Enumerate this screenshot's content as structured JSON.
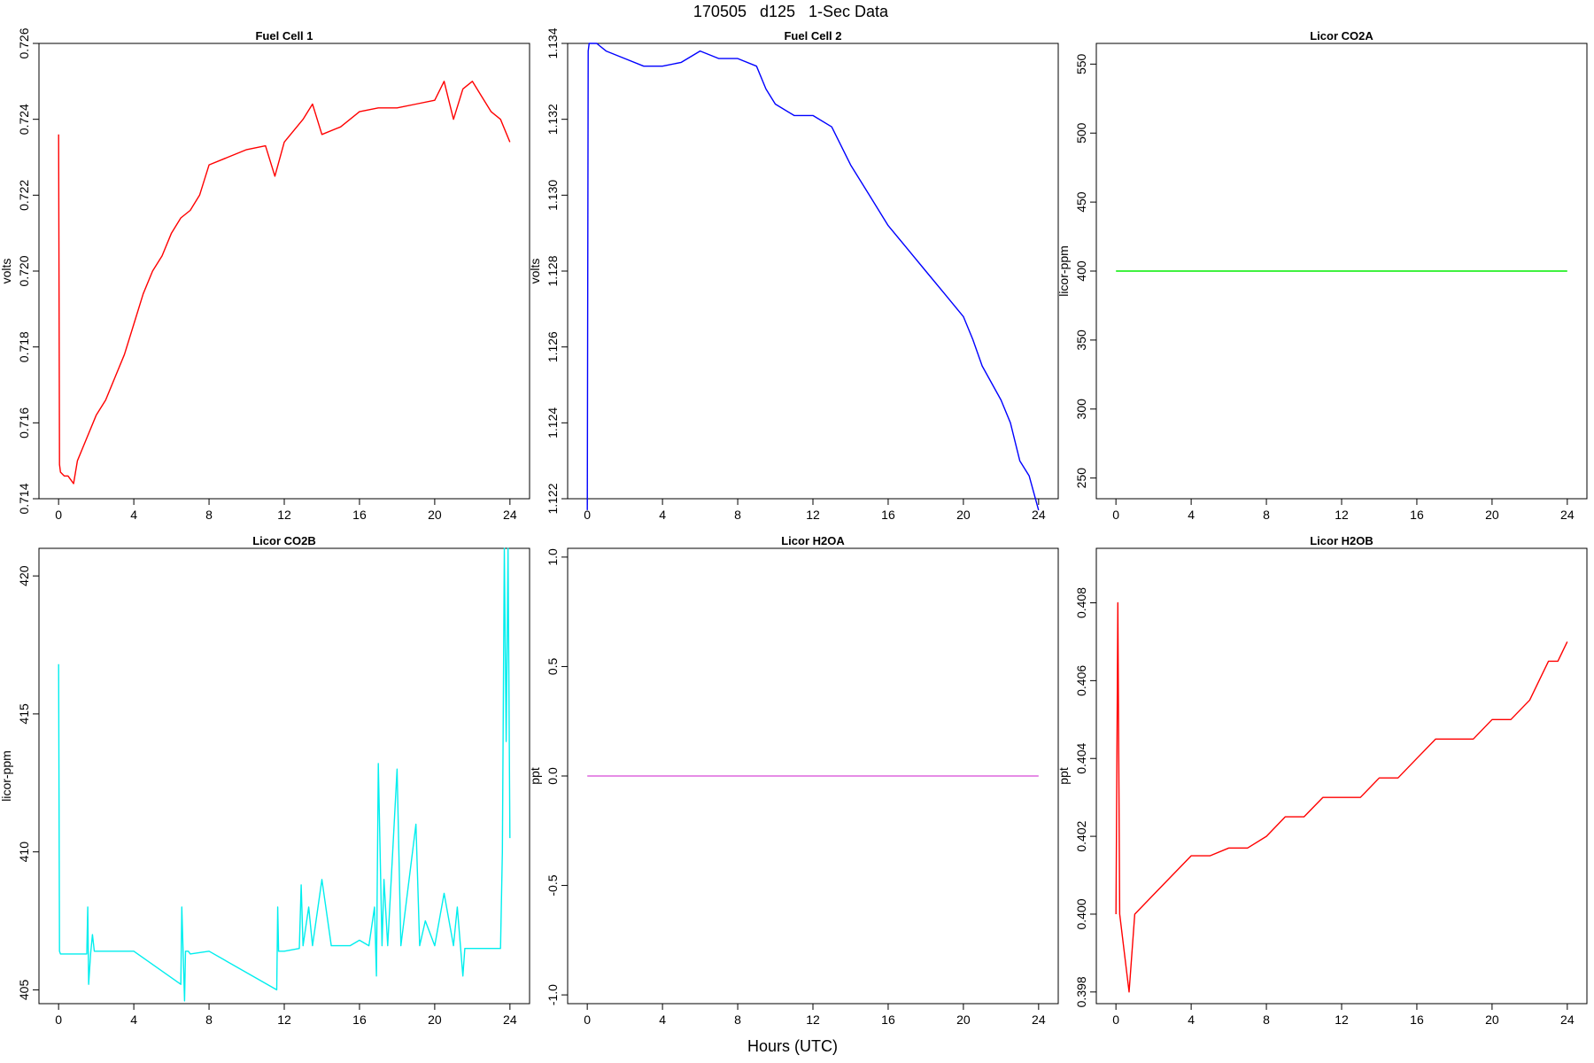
{
  "figure": {
    "title": "170505   d125   1-Sec Data",
    "xlabel": "Hours (UTC)"
  },
  "chart_data": [
    {
      "type": "line",
      "title": "Fuel Cell 1",
      "ylabel": "volts",
      "xlim": [
        0,
        24
      ],
      "ylim": [
        0.714,
        0.726
      ],
      "xticks": [
        0,
        4,
        8,
        12,
        16,
        20,
        24
      ],
      "yticks": [
        0.714,
        0.716,
        0.718,
        0.72,
        0.722,
        0.724,
        0.726
      ],
      "color": "#ff0000",
      "series": [
        {
          "x": [
            0,
            0.05,
            0.1,
            0.3,
            0.5,
            0.8,
            1.0,
            1.5,
            2.0,
            2.5,
            3.0,
            3.5,
            4.0,
            4.5,
            5.0,
            5.5,
            6.0,
            6.5,
            7.0,
            7.5,
            8.0,
            9.0,
            10.0,
            11.0,
            11.5,
            12.0,
            13.0,
            13.5,
            14.0,
            15.0,
            16.0,
            17.0,
            18.0,
            19.0,
            20.0,
            20.5,
            21.0,
            21.5,
            22.0,
            22.5,
            23.0,
            23.5,
            24.0
          ],
          "y": [
            0.7236,
            0.7149,
            0.7147,
            0.7146,
            0.7146,
            0.7144,
            0.715,
            0.7156,
            0.7162,
            0.7166,
            0.7172,
            0.7178,
            0.7186,
            0.7194,
            0.72,
            0.7204,
            0.721,
            0.7214,
            0.7216,
            0.722,
            0.7228,
            0.723,
            0.7232,
            0.7233,
            0.7225,
            0.7234,
            0.724,
            0.7244,
            0.7236,
            0.7238,
            0.7242,
            0.7243,
            0.7243,
            0.7244,
            0.7245,
            0.725,
            0.724,
            0.7248,
            0.725,
            0.7246,
            0.7242,
            0.724,
            0.7234
          ]
        }
      ]
    },
    {
      "type": "line",
      "title": "Fuel Cell 2",
      "ylabel": "volts",
      "xlim": [
        0,
        24
      ],
      "ylim": [
        1.122,
        1.134
      ],
      "xticks": [
        0,
        4,
        8,
        12,
        16,
        20,
        24
      ],
      "yticks": [
        1.122,
        1.124,
        1.126,
        1.128,
        1.13,
        1.132,
        1.134
      ],
      "color": "#0000ff",
      "series": [
        {
          "x": [
            0,
            0.05,
            0.1,
            0.5,
            1.0,
            2.0,
            3.0,
            4.0,
            5.0,
            6.0,
            7.0,
            8.0,
            9.0,
            9.5,
            10.0,
            11.0,
            12.0,
            13.0,
            14.0,
            15.0,
            16.0,
            17.0,
            18.0,
            19.0,
            20.0,
            20.5,
            21.0,
            22.0,
            22.5,
            23.0,
            23.5,
            24.0
          ],
          "y": [
            1.1217,
            1.1338,
            1.134,
            1.134,
            1.1338,
            1.1336,
            1.1334,
            1.1334,
            1.1335,
            1.1338,
            1.1336,
            1.1336,
            1.1334,
            1.1328,
            1.1324,
            1.1321,
            1.1321,
            1.1318,
            1.1308,
            1.13,
            1.1292,
            1.1286,
            1.128,
            1.1274,
            1.1268,
            1.1262,
            1.1255,
            1.1246,
            1.124,
            1.123,
            1.1226,
            1.1217
          ]
        }
      ]
    },
    {
      "type": "line",
      "title": "Licor CO2A",
      "ylabel": "licor-ppm",
      "xlim": [
        0,
        24
      ],
      "ylim": [
        235,
        565
      ],
      "xticks": [
        0,
        4,
        8,
        12,
        16,
        20,
        24
      ],
      "yticks": [
        250,
        300,
        350,
        400,
        450,
        500,
        550
      ],
      "color": "#00ee00",
      "series": [
        {
          "x": [
            0,
            24
          ],
          "y": [
            400,
            400
          ]
        }
      ]
    },
    {
      "type": "line",
      "title": "Licor CO2B",
      "ylabel": "licor-ppm",
      "xlim": [
        0,
        24
      ],
      "ylim": [
        404.5,
        421
      ],
      "xticks": [
        0,
        4,
        8,
        12,
        16,
        20,
        24
      ],
      "yticks": [
        405,
        410,
        415,
        420
      ],
      "color": "#00eeee",
      "series": [
        {
          "x": [
            0,
            0.05,
            0.1,
            1.5,
            1.55,
            1.6,
            1.7,
            1.8,
            1.9,
            2.0,
            2.1,
            2.2,
            4.0,
            6.5,
            6.55,
            6.7,
            6.75,
            6.9,
            7.0,
            8.0,
            11.6,
            11.65,
            11.7,
            11.8,
            12.0,
            12.8,
            12.9,
            13.0,
            13.3,
            13.5,
            14.0,
            14.5,
            15.0,
            15.5,
            16.0,
            16.5,
            16.8,
            16.9,
            17.0,
            17.2,
            17.3,
            17.5,
            18.0,
            18.2,
            19.0,
            19.2,
            19.5,
            20.0,
            20.5,
            21.0,
            21.2,
            21.5,
            21.6,
            22.0,
            23.0,
            23.5,
            23.6,
            23.7,
            23.8,
            23.9,
            24.0
          ],
          "y": [
            416.8,
            406.4,
            406.3,
            406.3,
            408.0,
            405.2,
            406.3,
            407.0,
            406.4,
            406.4,
            406.4,
            406.4,
            406.4,
            405.2,
            408.0,
            404.6,
            406.4,
            406.4,
            406.3,
            406.4,
            405.0,
            408.0,
            406.4,
            406.4,
            406.4,
            406.5,
            408.8,
            406.6,
            408.0,
            406.6,
            409.0,
            406.6,
            406.6,
            406.6,
            406.8,
            406.6,
            408.0,
            405.5,
            413.2,
            406.6,
            409.0,
            406.6,
            413.0,
            406.6,
            411.0,
            406.6,
            407.5,
            406.6,
            408.5,
            406.6,
            408.0,
            405.5,
            406.5,
            406.5,
            406.5,
            406.5,
            410.0,
            421.0,
            414.0,
            421.0,
            410.5
          ]
        }
      ]
    },
    {
      "type": "line",
      "title": "Licor H2OA",
      "ylabel": "ppt",
      "xlim": [
        0,
        24
      ],
      "ylim": [
        -1.04,
        1.04
      ],
      "xticks": [
        0,
        4,
        8,
        12,
        16,
        20,
        24
      ],
      "yticks": [
        -1.0,
        -0.5,
        0.0,
        0.5,
        1.0
      ],
      "ytick_labels": [
        "-1.0",
        "-0.5",
        "0.0",
        "0.5",
        "1.0"
      ],
      "color": "#dd66dd",
      "series": [
        {
          "x": [
            0,
            24
          ],
          "y": [
            0,
            0
          ]
        }
      ]
    },
    {
      "type": "line",
      "title": "Licor H2OB",
      "ylabel": "ppt",
      "xlim": [
        0,
        24
      ],
      "ylim": [
        0.3977,
        0.4094
      ],
      "xticks": [
        0,
        4,
        8,
        12,
        16,
        20,
        24
      ],
      "yticks": [
        0.398,
        0.4,
        0.402,
        0.404,
        0.406,
        0.408
      ],
      "color": "#ff0000",
      "series": [
        {
          "x": [
            0,
            0.1,
            0.2,
            0.7,
            1.0,
            2.0,
            3.0,
            4.0,
            5.0,
            6.0,
            7.0,
            8.0,
            9.0,
            10.0,
            11.0,
            12.0,
            13.0,
            14.0,
            15.0,
            16.0,
            17.0,
            18.0,
            19.0,
            20.0,
            21.0,
            22.0,
            23.0,
            23.5,
            24.0
          ],
          "y": [
            0.4,
            0.408,
            0.4,
            0.398,
            0.4,
            0.4005,
            0.401,
            0.4015,
            0.4015,
            0.4017,
            0.4017,
            0.402,
            0.4025,
            0.4025,
            0.403,
            0.403,
            0.403,
            0.4035,
            0.4035,
            0.404,
            0.4045,
            0.4045,
            0.4045,
            0.405,
            0.405,
            0.4055,
            0.4065,
            0.4065,
            0.407
          ]
        }
      ]
    }
  ]
}
